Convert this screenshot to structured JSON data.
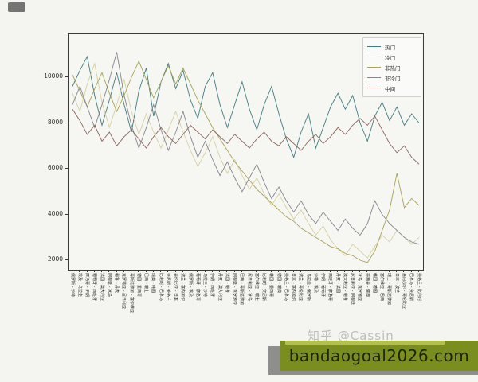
{
  "figure": {
    "background": "#f4f4f1",
    "plot_border_color": "#3a3a3a"
  },
  "chart_data": {
    "type": "line",
    "title": "",
    "xlabel": "",
    "ylabel": "",
    "ylim": [
      1500,
      11900
    ],
    "yticks": [
      2000,
      4000,
      6000,
      8000,
      10000
    ],
    "grid": false,
    "legend_position": "upper right",
    "x_labels": [
      "俄罗斯 - 沙特",
      "埃及 - 乌拉圭",
      "摩洛哥 - 伊朗",
      "葡萄牙 - 西班牙",
      "法国 - 澳大利亚",
      "阿根廷 - 冰岛",
      "秘鲁 - 丹麦",
      "克罗地亚 - 尼日利亚",
      "哥斯达黎加 - 塞尔维亚",
      "德国 - 墨西哥",
      "巴西 - 瑞士",
      "瑞典 - 韩国",
      "比利时 - 巴拿马",
      "突尼斯 - 英格兰",
      "哥伦比亚 - 日本",
      "波兰 - 塞内加尔",
      "俄罗斯 - 埃及",
      "葡萄牙 - 摩洛哥",
      "乌拉圭 - 沙特",
      "伊朗 - 西班牙",
      "丹麦 - 澳大利亚",
      "法国 - 秘鲁",
      "阿根廷 - 克罗地亚",
      "巴西 - 哥斯达黎加",
      "尼日利亚 - 冰岛",
      "塞尔维亚 - 瑞士",
      "比利时 - 突尼斯",
      "韩国 - 墨西哥",
      "德国 - 瑞典",
      "英格兰 - 巴拿马",
      "日本 - 塞内加尔",
      "波兰 - 哥伦比亚",
      "乌拉圭 - 俄罗斯",
      "沙特 - 埃及",
      "伊朗 - 葡萄牙",
      "西班牙 - 摩洛哥",
      "丹麦 - 法国",
      "澳大利亚 - 秘鲁",
      "尼日利亚 - 阿根廷",
      "冰岛 - 克罗地亚",
      "墨西哥 - 瑞典",
      "韩国 - 德国",
      "塞尔维亚 - 巴西",
      "瑞士 - 哥斯达黎加",
      "日本 - 波兰",
      "塞内加尔 - 哥伦比亚",
      "巴拿马 - 突尼斯",
      "英格兰 - 比利时"
    ],
    "series": [
      {
        "name": "热门",
        "color": "#3e7d82",
        "values": [
          9600,
          10300,
          10900,
          9200,
          7900,
          9000,
          10200,
          8800,
          7600,
          9400,
          10400,
          8300,
          9800,
          10600,
          9500,
          10300,
          9000,
          8200,
          9600,
          10200,
          8800,
          7800,
          8800,
          9800,
          8600,
          7700,
          8800,
          9600,
          8400,
          7300,
          6500,
          7600,
          8400,
          6900,
          7800,
          8700,
          9300,
          8600,
          9200,
          8000,
          7200,
          8300,
          8900,
          8100,
          8700,
          7900,
          8400,
          8000
        ]
      },
      {
        "name": "冷门",
        "color": "#d6d0a0",
        "values": [
          9300,
          8500,
          9700,
          10600,
          8900,
          7800,
          8800,
          9900,
          8500,
          7500,
          8400,
          7600,
          6900,
          7700,
          8500,
          7600,
          6800,
          6100,
          6700,
          7400,
          6500,
          5800,
          6400,
          5700,
          5100,
          5600,
          4900,
          4400,
          4900,
          4300,
          3800,
          4200,
          3600,
          3100,
          3500,
          2900,
          2500,
          2200,
          2700,
          2400,
          2100,
          2600,
          3100,
          2800,
          3300,
          3000,
          2700,
          3000
        ]
      },
      {
        "name": "非热门",
        "color": "#a8a352",
        "values": [
          10100,
          9400,
          8700,
          9500,
          10200,
          9300,
          8500,
          9200,
          10000,
          10700,
          9900,
          9100,
          9800,
          10500,
          9700,
          10400,
          9700,
          9000,
          8400,
          7800,
          7300,
          6800,
          6300,
          5900,
          5500,
          5100,
          4800,
          4500,
          4200,
          3900,
          3700,
          3400,
          3200,
          3000,
          2800,
          2600,
          2500,
          2300,
          2200,
          2000,
          1900,
          2400,
          3300,
          4200,
          5800,
          4300,
          4700,
          4400
        ]
      },
      {
        "name": "非冷门",
        "color": "#85858d",
        "values": [
          8800,
          9600,
          8700,
          7800,
          8800,
          9900,
          11100,
          9200,
          7900,
          6900,
          7800,
          8800,
          7700,
          6800,
          7600,
          8500,
          7400,
          6500,
          7200,
          6400,
          5700,
          6300,
          5600,
          5000,
          5600,
          6200,
          5400,
          4700,
          5200,
          4600,
          4100,
          4600,
          4000,
          3600,
          4100,
          3700,
          3300,
          3800,
          3400,
          3100,
          3600,
          4600,
          4000,
          3600,
          3300,
          3000,
          2800,
          2700
        ]
      },
      {
        "name": "中间",
        "color": "#8a635a",
        "values": [
          8600,
          8100,
          7500,
          7900,
          7200,
          7600,
          7000,
          7400,
          7700,
          7300,
          6900,
          7400,
          7800,
          7400,
          7100,
          7500,
          7900,
          7600,
          7300,
          7700,
          7400,
          7100,
          7500,
          7200,
          6900,
          7300,
          7600,
          7200,
          7000,
          7400,
          7100,
          6800,
          7200,
          7500,
          7100,
          7400,
          7800,
          7500,
          7900,
          8200,
          7900,
          8300,
          7700,
          7100,
          6700,
          7000,
          6500,
          6200
        ]
      }
    ]
  },
  "watermark": {
    "credit": "知乎 @Cassin",
    "credit_color": "#bdbdbb",
    "banner_text": "bandaogoal2026.com",
    "banner_color": "#7a8e20",
    "banner_highlight": "#b4c04e",
    "shadow_color": "#8e8e8c"
  }
}
